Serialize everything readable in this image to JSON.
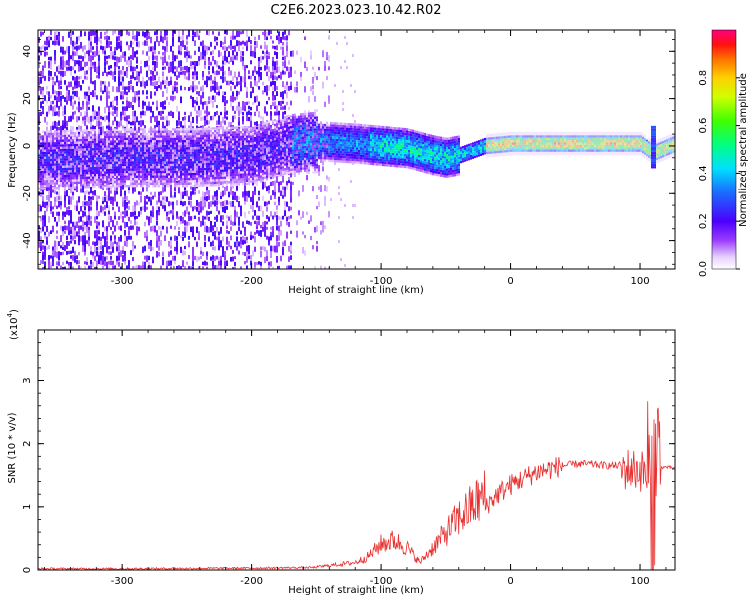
{
  "title": "C2E6.2023.023.10.42.R02",
  "chart_data": [
    {
      "type": "heatmap",
      "xlabel": "Height of straight line (km)",
      "ylabel": "Frequency (Hz)",
      "xlim": [
        -365,
        127
      ],
      "ylim": [
        -52,
        49
      ],
      "xticks": [
        "-300",
        "-200",
        "-100",
        "0",
        "100"
      ],
      "yticks": [
        "-40",
        "-20",
        "0",
        "20",
        "40"
      ],
      "colorbar": {
        "label": "Normalized spectral amplitude",
        "ticks": [
          "0.0",
          "0.2",
          "0.4",
          "0.6",
          "0.8"
        ],
        "range": [
          0,
          1
        ]
      },
      "ridge": {
        "x": [
          -360,
          -300,
          -250,
          -200,
          -170,
          -150,
          -120,
          -100,
          -80,
          -60,
          -50,
          -40,
          -30,
          -20,
          0,
          20,
          50,
          80,
          100,
          110,
          127
        ],
        "y": [
          -6,
          -5,
          -5,
          -4,
          1,
          2,
          1,
          0,
          -1,
          -4,
          -5,
          -4,
          -2,
          0,
          1,
          1,
          1,
          1,
          1,
          -3,
          1
        ]
      }
    },
    {
      "type": "line",
      "xlabel": "Height of straight line (km)",
      "ylabel": "SNR (10 * v/v)",
      "yscale_label": "(x10",
      "yscale_exp": "4",
      "xlim": [
        -365,
        127
      ],
      "ylim": [
        0,
        3.8
      ],
      "xticks": [
        "-300",
        "-200",
        "-100",
        "0",
        "100"
      ],
      "yticks": [
        "0",
        "1",
        "2",
        "3"
      ],
      "color": "#e83030",
      "envelope": {
        "x": [
          -365,
          -300,
          -200,
          -150,
          -140,
          -130,
          -120,
          -110,
          -100,
          -90,
          -80,
          -70,
          -60,
          -55,
          -50,
          -40,
          -30,
          -20,
          -10,
          0,
          10,
          20,
          30,
          40,
          50,
          60,
          70,
          80,
          90,
          100,
          105,
          108,
          110,
          112,
          115,
          120,
          127
        ],
        "y": [
          0.02,
          0.02,
          0.03,
          0.04,
          0.06,
          0.08,
          0.1,
          0.18,
          0.35,
          0.4,
          0.3,
          0.1,
          0.3,
          0.4,
          0.5,
          0.7,
          0.85,
          1.0,
          1.2,
          1.35,
          1.45,
          1.55,
          1.6,
          1.65,
          1.68,
          1.68,
          1.66,
          1.65,
          1.67,
          1.65,
          1.6,
          1.2,
          1.4,
          1.5,
          1.62,
          1.63,
          1.61
        ]
      }
    }
  ]
}
